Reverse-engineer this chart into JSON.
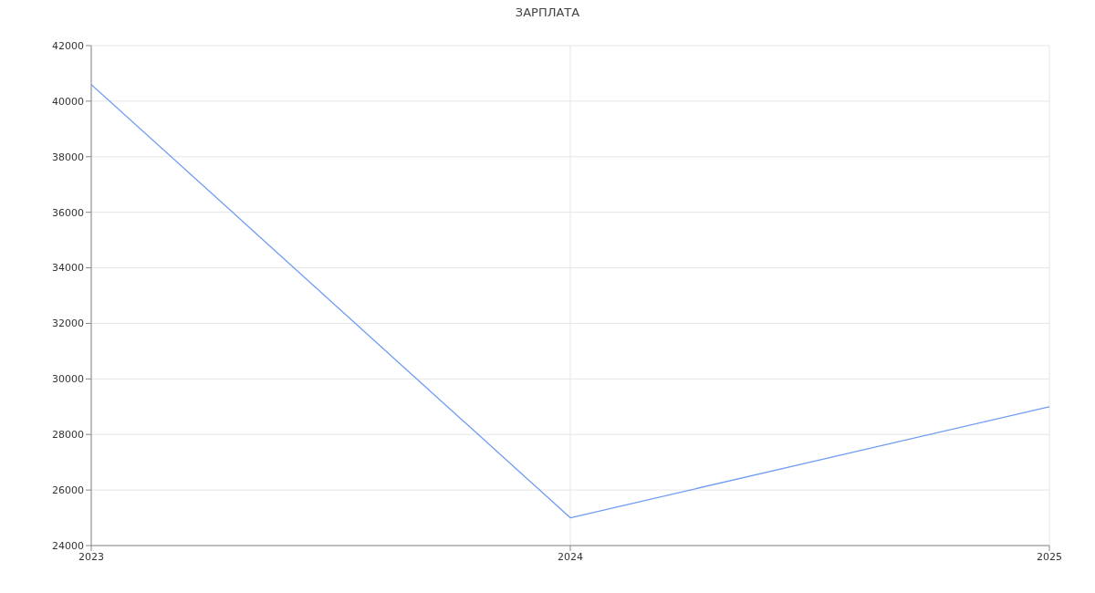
{
  "chart_data": {
    "type": "line",
    "title": "ЗАРПЛАТА",
    "x": [
      2023,
      2024,
      2025
    ],
    "series": [
      {
        "color": "#6f9cf2",
        "values": [
          40600,
          25000,
          29000
        ]
      }
    ],
    "xlim": [
      2023,
      2025
    ],
    "xticks": [
      2023,
      2024,
      2025
    ],
    "ylim": [
      24000,
      42000
    ],
    "yticks": [
      24000,
      26000,
      28000,
      30000,
      32000,
      34000,
      36000,
      38000,
      40000,
      42000
    ],
    "grid": true,
    "marker": "none",
    "line_style": "solid"
  }
}
